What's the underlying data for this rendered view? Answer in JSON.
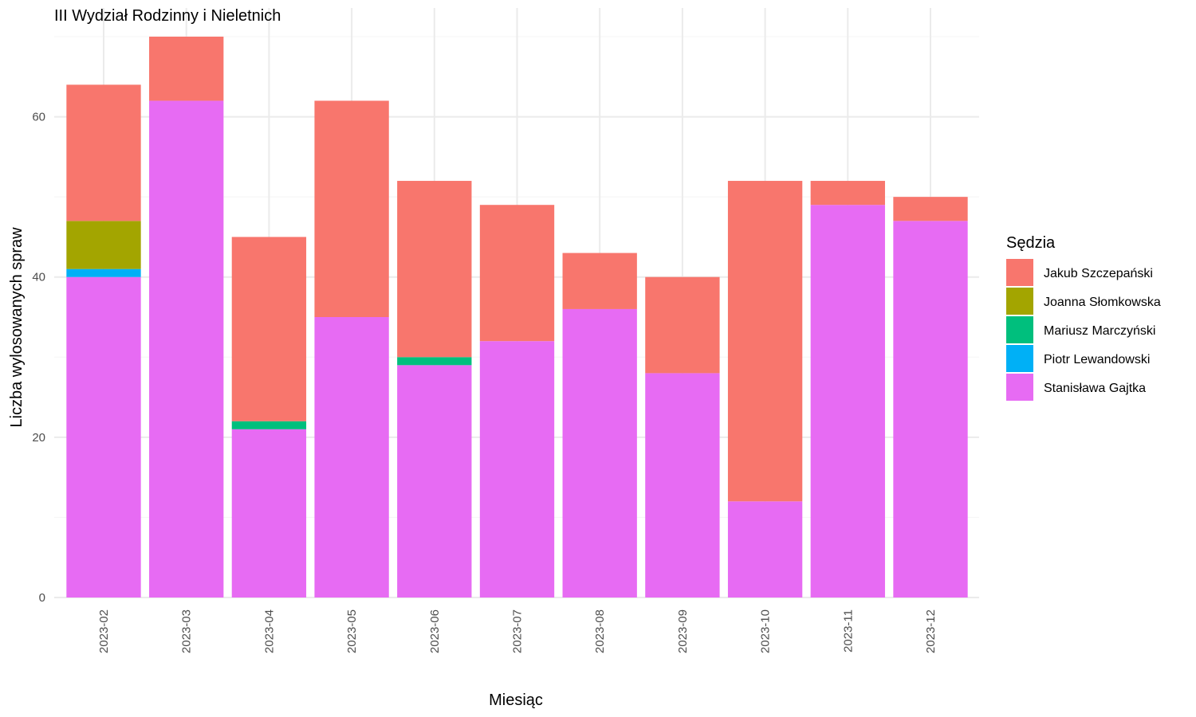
{
  "chart_data": {
    "type": "bar",
    "stacked": true,
    "title": "III Wydział Rodzinny i Nieletnich",
    "xlabel": "Miesiąc",
    "ylabel": "Liczba wylosowanych spraw",
    "ylim": [
      0,
      70
    ],
    "yticks": [
      0,
      20,
      40,
      60
    ],
    "grid": true,
    "legend": {
      "title": "Sędzia",
      "placement": "right"
    },
    "categories": [
      "2023-02",
      "2023-03",
      "2023-04",
      "2023-05",
      "2023-06",
      "2023-07",
      "2023-08",
      "2023-09",
      "2023-10",
      "2023-11",
      "2023-12"
    ],
    "series": [
      {
        "name": "Jakub Szczepański",
        "color": "#F8766D",
        "values": [
          17,
          8,
          23,
          27,
          22,
          17,
          7,
          12,
          40,
          3,
          3
        ]
      },
      {
        "name": "Joanna Słomkowska",
        "color": "#A3A500",
        "values": [
          6,
          0,
          0,
          0,
          0,
          0,
          0,
          0,
          0,
          0,
          0
        ]
      },
      {
        "name": "Mariusz Marczyński",
        "color": "#00BF7D",
        "values": [
          0,
          0,
          1,
          0,
          1,
          0,
          0,
          0,
          0,
          0,
          0
        ]
      },
      {
        "name": "Piotr Lewandowski",
        "color": "#00B0F6",
        "values": [
          1,
          0,
          0,
          0,
          0,
          0,
          0,
          0,
          0,
          0,
          0
        ]
      },
      {
        "name": "Stanisława Gajtka",
        "color": "#E76BF3",
        "values": [
          40,
          62,
          21,
          35,
          29,
          32,
          36,
          28,
          12,
          49,
          47
        ]
      }
    ]
  }
}
